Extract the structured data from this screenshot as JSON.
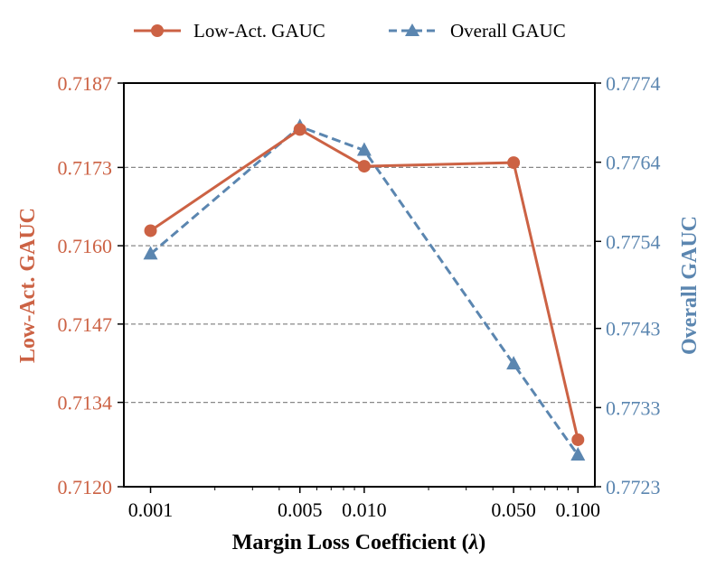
{
  "colors": {
    "left_series": "#cc6244",
    "right_series": "#5b86b0",
    "grid": "#888888",
    "axis": "#000000"
  },
  "chart_data": {
    "type": "line",
    "x_scale": "log",
    "x_ticks": [
      0.001,
      0.005,
      0.01,
      0.05,
      0.1
    ],
    "x_tick_labels": [
      "0.001",
      "0.005",
      "0.010",
      "0.050",
      "0.100"
    ],
    "x_lim": [
      0.00075,
      0.12
    ],
    "xlabel_prefix": "Margin Loss Coefficient (",
    "xlabel_symbol": "λ",
    "xlabel_suffix": ")",
    "left_axis": {
      "label": "Low-Act. GAUC",
      "ylim": [
        0.712,
        0.7187
      ],
      "ticks": [
        0.712,
        0.7134,
        0.7147,
        0.716,
        0.7173,
        0.7187
      ],
      "tick_labels": [
        "0.7120",
        "0.7134",
        "0.7147",
        "0.7160",
        "0.7173",
        "0.7187"
      ]
    },
    "right_axis": {
      "label": "Overall GAUC",
      "ylim": [
        0.7723,
        0.7774
      ],
      "ticks": [
        0.7723,
        0.7733,
        0.7743,
        0.7754,
        0.7764,
        0.7774
      ],
      "tick_labels": [
        "0.7723",
        "0.7733",
        "0.7743",
        "0.7754",
        "0.7764",
        "0.7774"
      ]
    },
    "grid": "horizontal dashed",
    "legend_position": "top-center",
    "series": [
      {
        "name": "Low-Act. GAUC",
        "axis": "left",
        "style": "solid",
        "marker": "circle",
        "x": [
          0.001,
          0.005,
          0.01,
          0.05,
          0.1
        ],
        "values": [
          0.71625,
          0.71793,
          0.71732,
          0.71738,
          0.71278
        ]
      },
      {
        "name": "Overall GAUC",
        "axis": "right",
        "style": "dashed",
        "marker": "triangle",
        "x": [
          0.001,
          0.005,
          0.01,
          0.05,
          0.1
        ],
        "values": [
          0.77524,
          0.77685,
          0.77655,
          0.77385,
          0.7727
        ]
      }
    ]
  }
}
